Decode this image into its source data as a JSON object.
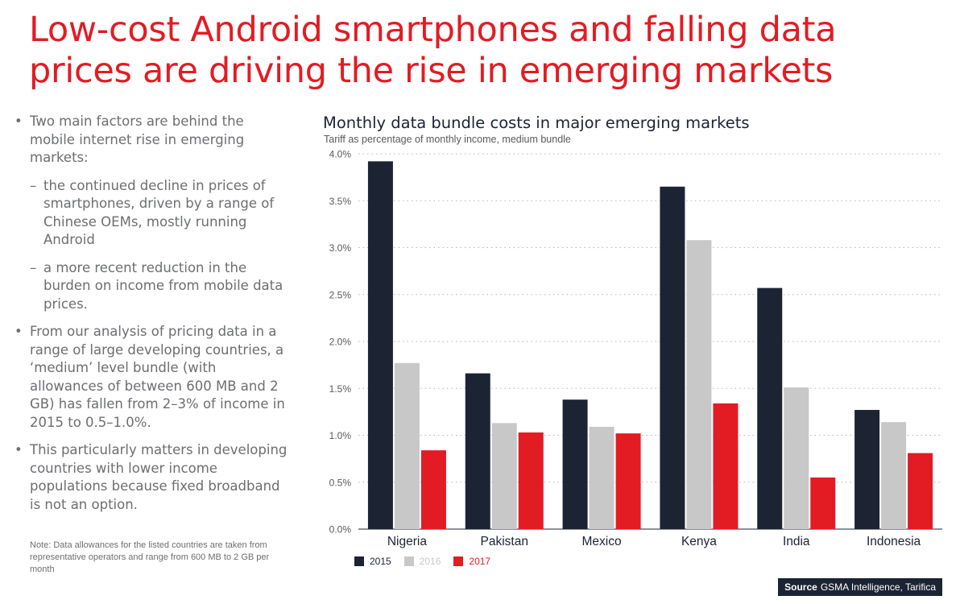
{
  "headline": {
    "line1": "Low-cost Android smartphones and falling data",
    "line2": "prices are driving the rise in emerging markets"
  },
  "bullets": [
    {
      "level": 1,
      "text": "Two main factors are behind the mobile internet rise in emerging markets:"
    },
    {
      "level": 2,
      "text": "the continued decline in prices of smartphones, driven by a range of Chinese OEMs, mostly running Android"
    },
    {
      "level": 2,
      "text": "a more recent reduction in the burden on income from mobile data prices."
    },
    {
      "level": 1,
      "text": "From our analysis of pricing data in a range of large developing countries, a ‘medium’ level bundle (with allowances of between 600 MB and 2 GB) has fallen from 2–3% of income in 2015 to 0.5–1.0%."
    },
    {
      "level": 1,
      "text": "This particularly matters in developing countries with lower income populations because fixed broadband is not an option."
    }
  ],
  "note": "Note: Data allowances for the listed countries are taken from representative operators and range from 600 MB to 2 GB per month",
  "source": {
    "label": "Source",
    "text": "GSMA Intelligence, Tarifica"
  },
  "colors": {
    "accent": "#e31b23",
    "navy": "#1c2333",
    "grey": "#c8c8c9",
    "red": "#e31b23"
  },
  "chart_data": {
    "type": "bar",
    "title": "Monthly data bundle costs in major emerging markets",
    "subtitle": "Tariff as percentage of monthly income, medium bundle",
    "categories": [
      "Nigeria",
      "Pakistan",
      "Mexico",
      "Kenya",
      "India",
      "Indonesia"
    ],
    "series": [
      {
        "name": "2015",
        "color": "#1c2333",
        "values": [
          3.92,
          1.66,
          1.38,
          3.65,
          2.57,
          1.27
        ]
      },
      {
        "name": "2016",
        "color": "#c8c8c9",
        "values": [
          1.77,
          1.13,
          1.09,
          3.08,
          1.51,
          1.14
        ]
      },
      {
        "name": "2017",
        "color": "#e31b23",
        "values": [
          0.84,
          1.03,
          1.02,
          1.34,
          0.55,
          0.81
        ]
      }
    ],
    "ylim": [
      0,
      4.0
    ],
    "yticks": [
      0,
      0.5,
      1.0,
      1.5,
      2.0,
      2.5,
      3.0,
      3.5,
      4.0
    ],
    "ytick_labels": [
      "0.0%",
      "0.5%",
      "1.0%",
      "1.5%",
      "2.0%",
      "2.5%",
      "3.0%",
      "3.5%",
      "4.0%"
    ],
    "grid": "dotted horizontal",
    "legend": "bottom-left"
  }
}
